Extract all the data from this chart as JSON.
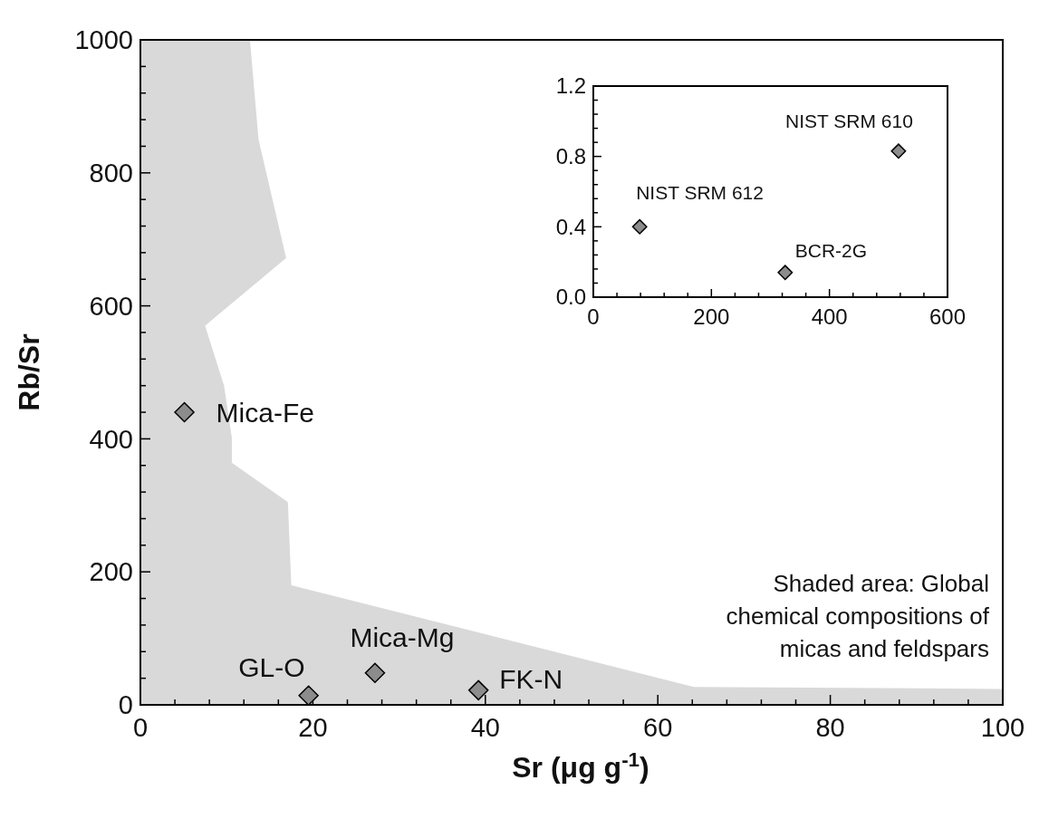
{
  "chart_data": [
    {
      "type": "scatter",
      "xlabel": "Sr (μg g$^{-1}$)",
      "ylabel": "Rb/Sr",
      "xlim": [
        0,
        100
      ],
      "ylim": [
        0,
        1000
      ],
      "xticks": [
        0,
        {
          "value": 4,
          "label": null
        },
        {
          "value": 8,
          "label": null
        },
        {
          "value": 12,
          "label": null
        },
        {
          "value": 16,
          "label": null
        },
        20,
        {
          "value": 24,
          "label": null
        },
        {
          "value": 28,
          "label": null
        },
        {
          "value": 32,
          "label": null
        },
        {
          "value": 36,
          "label": null
        },
        40,
        {
          "value": 44,
          "label": null
        },
        {
          "value": 48,
          "label": null
        },
        {
          "value": 52,
          "label": null
        },
        {
          "value": 56,
          "label": null
        },
        60,
        {
          "value": 64,
          "label": null
        },
        {
          "value": 68,
          "label": null
        },
        {
          "value": 72,
          "label": null
        },
        {
          "value": 76,
          "label": null
        },
        80,
        {
          "value": 84,
          "label": null
        },
        {
          "value": 88,
          "label": null
        },
        {
          "value": 92,
          "label": null
        },
        {
          "value": 96,
          "label": null
        },
        100
      ],
      "yticks": [
        0,
        {
          "value": 40,
          "label": null
        },
        {
          "value": 80,
          "label": null
        },
        {
          "value": 120,
          "label": null
        },
        {
          "value": 160,
          "label": null
        },
        200,
        {
          "value": 240,
          "label": null
        },
        {
          "value": 280,
          "label": null
        },
        {
          "value": 320,
          "label": null
        },
        {
          "value": 360,
          "label": null
        },
        400,
        {
          "value": 440,
          "label": null
        },
        {
          "value": 480,
          "label": null
        },
        {
          "value": 520,
          "label": null
        },
        {
          "value": 560,
          "label": null
        },
        600,
        {
          "value": 640,
          "label": null
        },
        {
          "value": 680,
          "label": null
        },
        {
          "value": 720,
          "label": null
        },
        {
          "value": 760,
          "label": null
        },
        800,
        {
          "value": 840,
          "label": null
        },
        {
          "value": 880,
          "label": null
        },
        {
          "value": 920,
          "label": null
        },
        {
          "value": 960,
          "label": null
        },
        1000
      ],
      "grid": false,
      "marker": "diamond",
      "series": [
        {
          "type": "area",
          "marker": "none",
          "color": "#d9d9d9",
          "x": [
            0,
            12.7,
            13.7,
            16.9,
            7.5,
            9.7,
            10.6,
            10.6,
            17.1,
            17.5,
            64.2,
            100,
            100,
            0
          ],
          "values": [
            1000,
            1000,
            850,
            672,
            570,
            480,
            402,
            364,
            305,
            180,
            27,
            24,
            0,
            0
          ]
        },
        {
          "color": "#8c8c8c",
          "x": [
            5.1,
            19.5,
            27.2,
            39.2
          ],
          "values": [
            440,
            14,
            48,
            22
          ]
        }
      ],
      "annotations": [
        {
          "text": "Mica-Fe",
          "x": 5.1,
          "y": 440
        },
        {
          "text": "GL-O",
          "x": 19.5,
          "y": 14
        },
        {
          "text": "Mica-Mg",
          "x": 27.2,
          "y": 48
        },
        {
          "text": "FK-N",
          "x": 39.2,
          "y": 22
        },
        "Shaded area: Global chemical compositions of micas and feldspars"
      ]
    },
    {
      "type": "scatter",
      "xlim": [
        0,
        600
      ],
      "ylim": [
        0,
        1.2
      ],
      "xticks": [
        0,
        {
          "value": 40,
          "label": null
        },
        {
          "value": 80,
          "label": null
        },
        {
          "value": 120,
          "label": null
        },
        {
          "value": 160,
          "label": null
        },
        200,
        {
          "value": 240,
          "label": null
        },
        {
          "value": 280,
          "label": null
        },
        {
          "value": 320,
          "label": null
        },
        {
          "value": 360,
          "label": null
        },
        400,
        {
          "value": 440,
          "label": null
        },
        {
          "value": 480,
          "label": null
        },
        {
          "value": 520,
          "label": null
        },
        {
          "value": 560,
          "label": null
        },
        600
      ],
      "yticks": [
        {
          "value": 0,
          "label": "0.0"
        },
        {
          "value": 0.08,
          "label": null
        },
        {
          "value": 0.16,
          "label": null
        },
        {
          "value": 0.24,
          "label": null
        },
        {
          "value": 0.32,
          "label": null
        },
        0.4,
        {
          "value": 0.48,
          "label": null
        },
        {
          "value": 0.56,
          "label": null
        },
        {
          "value": 0.64,
          "label": null
        },
        {
          "value": 0.72,
          "label": null
        },
        0.8,
        {
          "value": 0.88,
          "label": null
        },
        {
          "value": 0.96,
          "label": null
        },
        {
          "value": 1.04,
          "label": null
        },
        {
          "value": 1.12,
          "label": null
        },
        1.2
      ],
      "grid": false,
      "marker": "diamond",
      "series": [
        {
          "color": "#8c8c8c",
          "x": [
            78.5,
            325,
            517
          ],
          "values": [
            0.4,
            0.14,
            0.83
          ]
        }
      ],
      "annotations": [
        {
          "text": "NIST SRM 612",
          "x": 78.5,
          "y": 0.4
        },
        {
          "text": "BCR-2G",
          "x": 325,
          "y": 0.14
        },
        {
          "text": "NIST SRM 610",
          "x": 517,
          "y": 0.83
        }
      ]
    }
  ]
}
